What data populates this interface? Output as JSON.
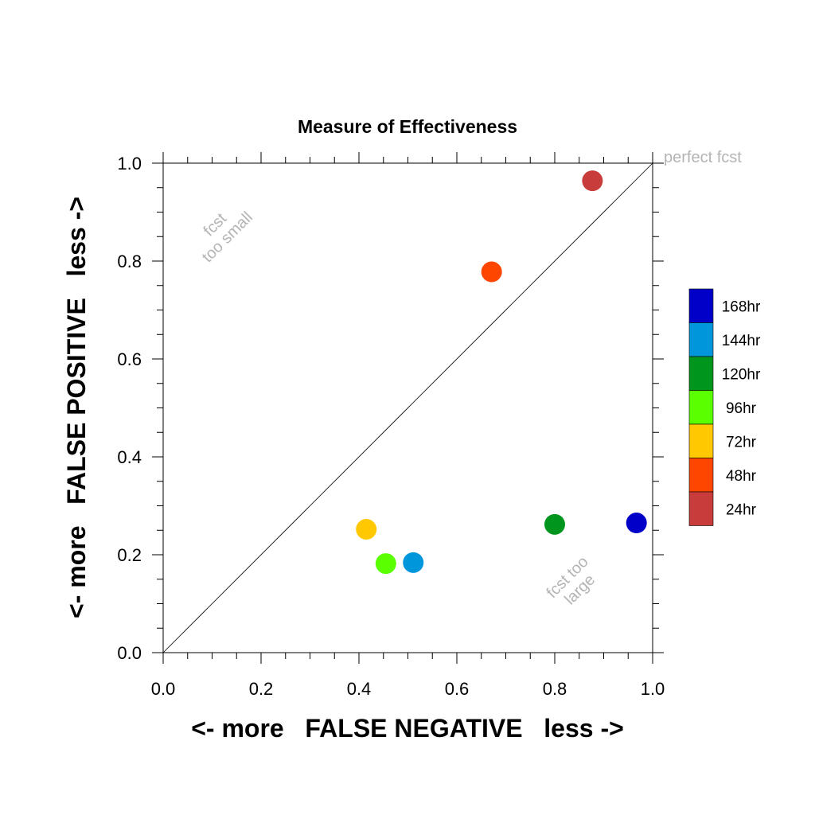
{
  "chart_data": {
    "type": "scatter",
    "title": "Measure of Effectiveness",
    "xlabel": "<- more   FALSE NEGATIVE   less ->",
    "ylabel": "<- more   FALSE POSITIVE   less ->",
    "xlim": [
      0.0,
      1.0
    ],
    "ylim": [
      0.0,
      1.0
    ],
    "xticks": [
      "0.0",
      "0.2",
      "0.4",
      "0.6",
      "0.8",
      "1.0"
    ],
    "yticks": [
      "0.0",
      "0.2",
      "0.4",
      "0.6",
      "0.8",
      "1.0"
    ],
    "grid": false,
    "legend_placement": "right",
    "reference_line": "diagonal y = x",
    "annotations": [
      {
        "lines": [
          "fcst",
          "too small"
        ],
        "x": 0.12,
        "y": 0.86
      },
      {
        "lines": [
          "fcst too",
          "large"
        ],
        "x": 0.84,
        "y": 0.14
      },
      {
        "lines": [
          "perfect fcst"
        ],
        "x": 1.0,
        "y": 1.0
      }
    ],
    "series": [
      {
        "name": "168hr",
        "color": "#0000c8",
        "x": 0.967,
        "y": 0.265
      },
      {
        "name": "144hr",
        "color": "#0096dc",
        "x": 0.511,
        "y": 0.184
      },
      {
        "name": "120hr",
        "color": "#00961e",
        "x": 0.8,
        "y": 0.262
      },
      {
        "name": "96hr",
        "color": "#5aff00",
        "x": 0.455,
        "y": 0.182
      },
      {
        "name": "72hr",
        "color": "#ffc800",
        "x": 0.415,
        "y": 0.252
      },
      {
        "name": "48hr",
        "color": "#ff4600",
        "x": 0.671,
        "y": 0.778
      },
      {
        "name": "24hr",
        "color": "#c83c3c",
        "x": 0.877,
        "y": 0.964
      }
    ]
  }
}
